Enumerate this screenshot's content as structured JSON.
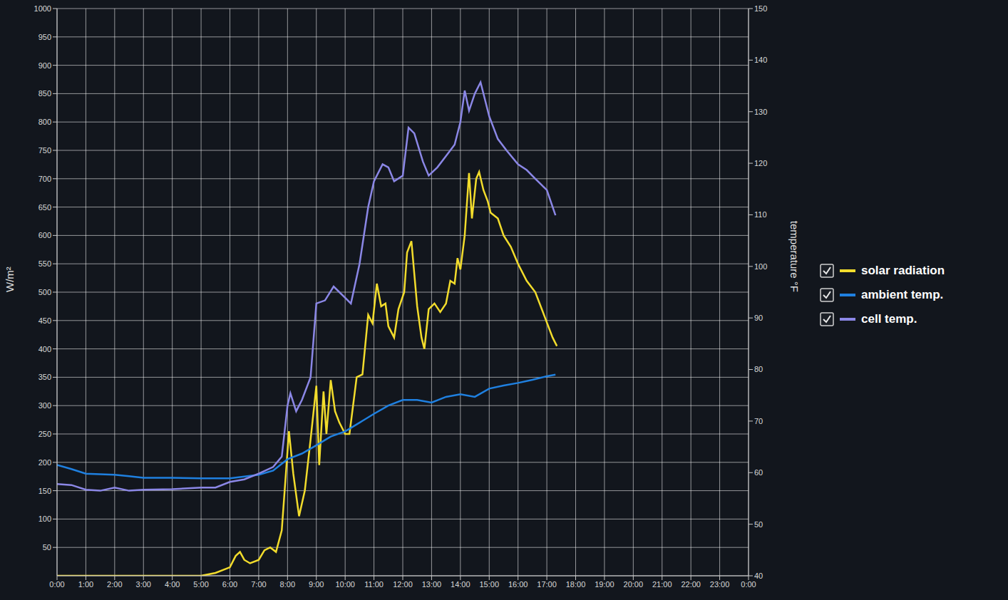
{
  "chart_data": {
    "type": "line",
    "y_label": "W/m²",
    "y2_label": "temperature °F",
    "xlim": [
      0,
      24
    ],
    "xticks": [
      {
        "value": 0,
        "label": "0:00"
      },
      {
        "value": 1,
        "label": "1:00"
      },
      {
        "value": 2,
        "label": "2:00"
      },
      {
        "value": 3,
        "label": "3:00"
      },
      {
        "value": 4,
        "label": "4:00"
      },
      {
        "value": 5,
        "label": "5:00"
      },
      {
        "value": 6,
        "label": "6:00"
      },
      {
        "value": 7,
        "label": "7:00"
      },
      {
        "value": 8,
        "label": "8:00"
      },
      {
        "value": 9,
        "label": "9:00"
      },
      {
        "value": 10,
        "label": "10:00"
      },
      {
        "value": 11,
        "label": "11:00"
      },
      {
        "value": 12,
        "label": "12:00"
      },
      {
        "value": 13,
        "label": "13:00"
      },
      {
        "value": 14,
        "label": "14:00"
      },
      {
        "value": 15,
        "label": "15:00"
      },
      {
        "value": 16,
        "label": "16:00"
      },
      {
        "value": 17,
        "label": "17:00"
      },
      {
        "value": 18,
        "label": "18:00"
      },
      {
        "value": 19,
        "label": "19:00"
      },
      {
        "value": 20,
        "label": "20:00"
      },
      {
        "value": 21,
        "label": "21:00"
      },
      {
        "value": 22,
        "label": "22:00"
      },
      {
        "value": 23,
        "label": "23:00"
      },
      {
        "value": 24,
        "label": "0:00"
      }
    ],
    "ylim": [
      0,
      1000
    ],
    "yticks": [
      50,
      100,
      150,
      200,
      250,
      300,
      350,
      400,
      450,
      500,
      550,
      600,
      650,
      700,
      750,
      800,
      850,
      900,
      950,
      1000
    ],
    "y2lim": [
      40,
      150
    ],
    "y2ticks": [
      40,
      50,
      60,
      70,
      80,
      90,
      100,
      110,
      120,
      130,
      140,
      150
    ],
    "grid": true,
    "legend": "right",
    "series": [
      {
        "name": "solar radiation",
        "color": "#f2dc2c",
        "axis": "y",
        "x": [
          0,
          1,
          2,
          3,
          4,
          5,
          5.5,
          6,
          6.2,
          6.35,
          6.5,
          6.7,
          7,
          7.2,
          7.4,
          7.6,
          7.8,
          8.05,
          8.2,
          8.4,
          8.6,
          8.8,
          9.0,
          9.1,
          9.25,
          9.35,
          9.5,
          9.65,
          9.8,
          10.0,
          10.15,
          10.4,
          10.6,
          10.8,
          10.95,
          11.1,
          11.25,
          11.4,
          11.5,
          11.7,
          11.85,
          12.05,
          12.15,
          12.3,
          12.5,
          12.65,
          12.75,
          12.9,
          13.1,
          13.3,
          13.5,
          13.65,
          13.8,
          13.9,
          14.0,
          14.15,
          14.3,
          14.4,
          14.55,
          14.65,
          14.8,
          14.95,
          15.05,
          15.3,
          15.5,
          15.75,
          16.0,
          16.3,
          16.6,
          16.9,
          17.2,
          17.35
        ],
        "values": [
          0,
          0,
          0,
          0,
          0,
          0,
          5,
          15,
          35,
          42,
          28,
          22,
          28,
          45,
          50,
          42,
          80,
          255,
          180,
          105,
          150,
          240,
          335,
          195,
          325,
          250,
          345,
          290,
          270,
          250,
          250,
          350,
          355,
          460,
          445,
          515,
          475,
          480,
          440,
          420,
          470,
          500,
          570,
          590,
          475,
          420,
          400,
          470,
          480,
          465,
          480,
          520,
          515,
          560,
          540,
          600,
          710,
          630,
          700,
          712,
          680,
          660,
          640,
          630,
          600,
          580,
          550,
          520,
          500,
          460,
          420,
          405
        ]
      },
      {
        "name": "ambient temp.",
        "color": "#1f80e0",
        "axis": "y2",
        "x": [
          0,
          0.5,
          1,
          2,
          2.5,
          3,
          4,
          5,
          6,
          7,
          7.5,
          8,
          8.5,
          9,
          9.5,
          10,
          10.5,
          11,
          11.5,
          12,
          12.5,
          13,
          13.5,
          14,
          14.5,
          15,
          15.5,
          16,
          16.5,
          17,
          17.3
        ],
        "values": [
          61.5,
          60.7,
          59.8,
          59.6,
          59.3,
          59,
          59,
          58.9,
          58.9,
          59.6,
          60.4,
          62.6,
          63.7,
          65.3,
          67,
          68,
          69.7,
          71.4,
          73,
          74.1,
          74.1,
          73.6,
          74.7,
          75.2,
          74.7,
          76.3,
          76.9,
          77.4,
          78,
          78.7,
          79
        ]
      },
      {
        "name": "cell temp.",
        "color": "#8b87e6",
        "axis": "y2",
        "x": [
          0,
          0.5,
          1,
          1.5,
          2,
          2.5,
          3,
          4,
          5,
          5.5,
          6,
          6.5,
          7,
          7.5,
          7.8,
          8,
          8.1,
          8.3,
          8.5,
          8.8,
          9,
          9.3,
          9.6,
          9.8,
          10,
          10.2,
          10.5,
          10.8,
          11,
          11.3,
          11.5,
          11.7,
          12,
          12.2,
          12.4,
          12.7,
          12.9,
          13.2,
          13.5,
          13.8,
          14,
          14.15,
          14.3,
          14.5,
          14.7,
          15,
          15.3,
          15.6,
          16,
          16.3,
          16.6,
          17,
          17.3
        ],
        "values": [
          57.8,
          57.6,
          56.7,
          56.5,
          57.1,
          56.5,
          56.7,
          56.8,
          57.1,
          57.1,
          58.2,
          58.7,
          59.8,
          61.1,
          63.1,
          73,
          75.4,
          71.9,
          74.1,
          78.5,
          92.8,
          93.4,
          96.1,
          95,
          93.9,
          92.8,
          100.5,
          111.5,
          116.5,
          119.8,
          119.2,
          116.5,
          117.6,
          126.9,
          125.8,
          120.3,
          117.6,
          119.2,
          121.4,
          123.6,
          128,
          134.1,
          130.2,
          133.5,
          135.7,
          129.1,
          124.7,
          122.5,
          119.8,
          118.7,
          117,
          114.8,
          109.9
        ]
      }
    ]
  }
}
